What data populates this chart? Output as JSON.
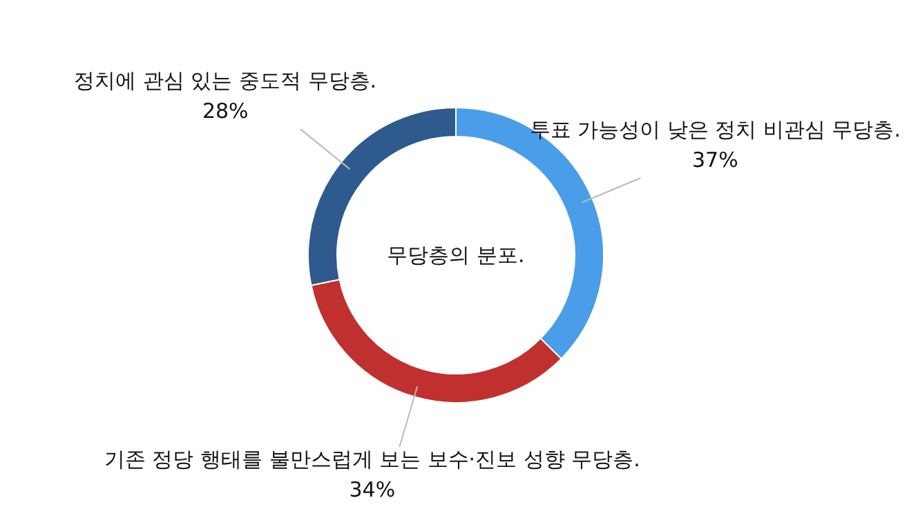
{
  "chart_data": {
    "type": "donut",
    "title": "무당층의 분포.",
    "categories": [
      "투표 가능성이 낮은 정치 비관심 무당층.",
      "기존 정당 행태를 불만스럽게 보는 보수·진보 성향 무당층.",
      "정치에 관심 있는 중도적 무당층."
    ],
    "values": [
      37,
      34,
      28
    ],
    "colors": [
      "#4a9de8",
      "#c0302e",
      "#2e5a8e"
    ],
    "value_labels": [
      "37%",
      "34%",
      "28%"
    ]
  }
}
